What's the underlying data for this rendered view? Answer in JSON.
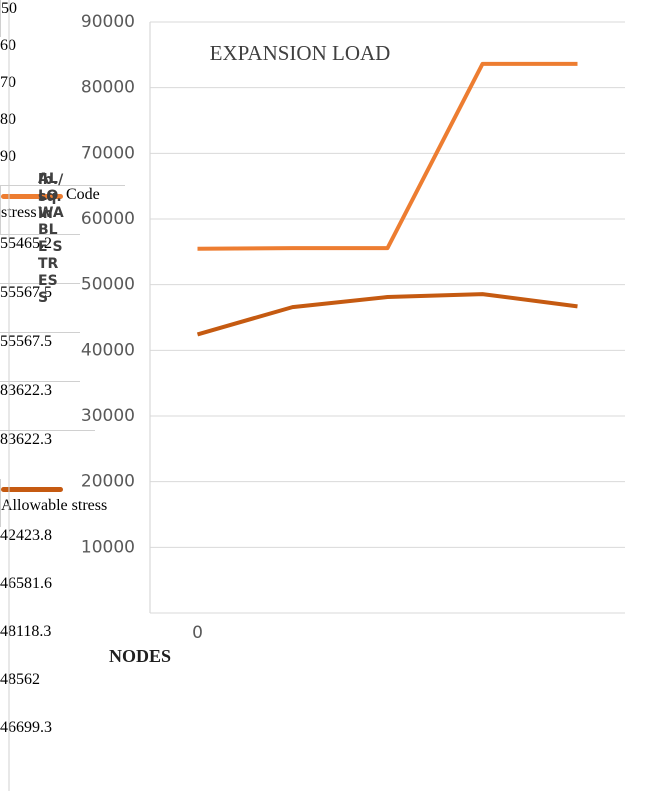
{
  "chart_data": {
    "type": "line",
    "title": "EXPANSION LOAD",
    "x_label": "NODES",
    "y_label": [
      "lb./sq.in",
      "ALLOWABLE STRESS"
    ],
    "categories": [
      "50",
      "60",
      "70",
      "80",
      "90"
    ],
    "series": [
      {
        "name": "Code stress",
        "color": "#ed7d31",
        "values": [
          55465.2,
          55567.5,
          55567.5,
          83622.3,
          83622.3
        ]
      },
      {
        "name": "Allowable stress",
        "color": "#c55a11",
        "values": [
          42423.8,
          46581.6,
          48118.3,
          48562,
          46699.3
        ]
      }
    ],
    "ylim": [
      0,
      90000
    ],
    "yticks": [
      0,
      10000,
      20000,
      30000,
      40000,
      50000,
      60000,
      70000,
      80000,
      90000
    ],
    "grid": true
  }
}
